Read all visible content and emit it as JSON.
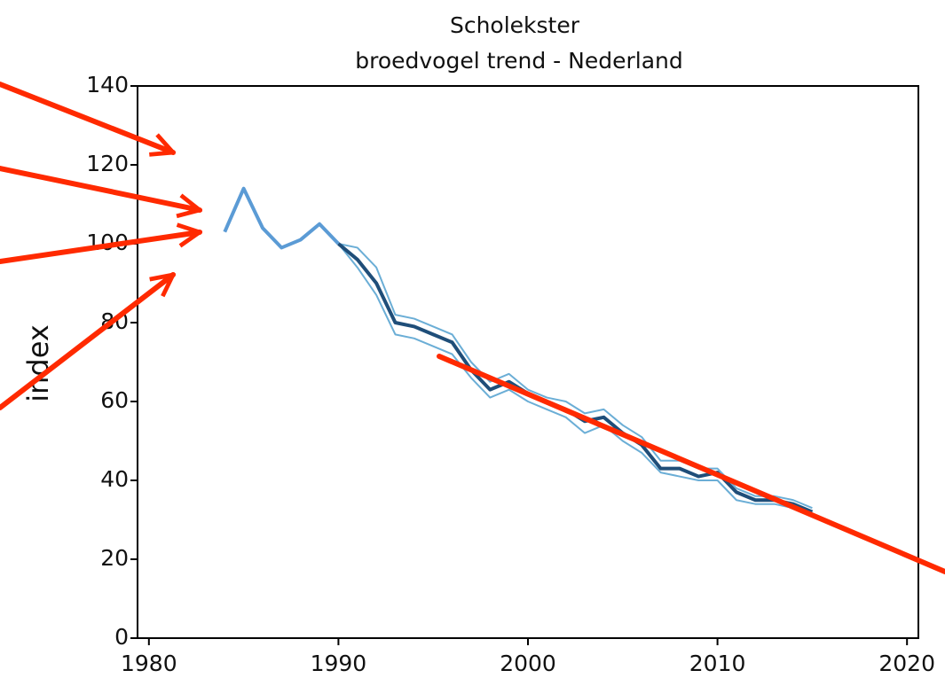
{
  "chart_data": {
    "type": "line",
    "title": "Scholekster",
    "subtitle": "broedvogel trend - Nederland",
    "y_label": "index",
    "x": [
      1984,
      1985,
      1986,
      1987,
      1988,
      1989,
      1990,
      1991,
      1992,
      1993,
      1994,
      1995,
      1996,
      1997,
      1998,
      1999,
      2000,
      2001,
      2002,
      2003,
      2004,
      2005,
      2006,
      2007,
      2008,
      2009,
      2010,
      2011,
      2012,
      2013,
      2014,
      2015
    ],
    "series": [
      {
        "color": "#5b9bd5",
        "width": 4,
        "values": [
          103,
          114,
          104,
          99,
          101,
          105,
          100,
          null,
          null,
          null,
          null,
          null,
          null,
          null,
          null,
          null,
          null,
          null,
          null,
          null,
          null,
          null,
          null,
          null,
          null,
          null,
          null,
          null,
          null,
          null,
          null,
          null
        ]
      },
      {
        "color": "#6baed6",
        "width": 2,
        "values": [
          null,
          null,
          null,
          null,
          null,
          null,
          100,
          99,
          94,
          82,
          81,
          79,
          77,
          70,
          65,
          67,
          63,
          61,
          60,
          57,
          58,
          54,
          51,
          45,
          45,
          43,
          43,
          38,
          36,
          36,
          35,
          33
        ]
      },
      {
        "color": "#6baed6",
        "width": 2,
        "values": [
          null,
          null,
          null,
          null,
          null,
          null,
          100,
          94,
          87,
          77,
          76,
          74,
          72,
          66,
          61,
          63,
          60,
          58,
          56,
          52,
          54,
          50,
          47,
          42,
          41,
          40,
          40,
          35,
          34,
          34,
          33,
          31
        ]
      },
      {
        "color": "#1f4e79",
        "width": 4,
        "values": [
          null,
          null,
          null,
          null,
          null,
          null,
          100,
          96,
          90,
          80,
          79,
          77,
          75,
          68,
          63,
          65,
          62,
          60,
          58,
          55,
          56,
          52,
          49,
          43,
          43,
          41,
          42,
          37,
          35,
          35,
          34,
          32
        ]
      }
    ],
    "xlim": [
      1979.4,
      2020.6
    ],
    "xticks": [
      1980,
      1990,
      2000,
      2010,
      2020
    ],
    "ylim": [
      0,
      140
    ],
    "yticks": [
      0,
      20,
      40,
      60,
      80,
      100,
      120,
      140
    ]
  }
}
